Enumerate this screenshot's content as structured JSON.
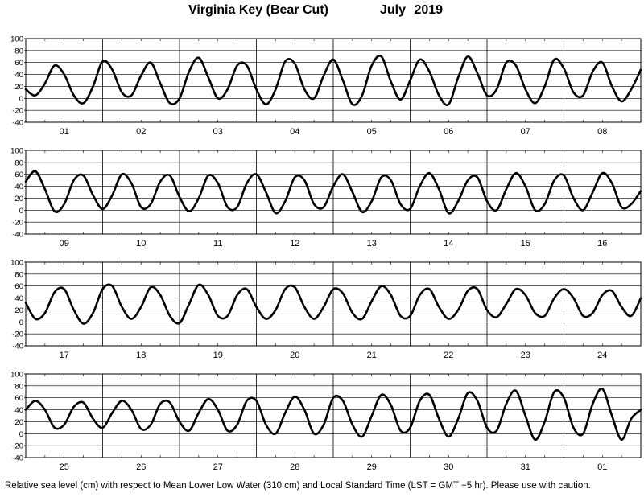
{
  "title": {
    "location": "Virginia Key (Bear Cut)",
    "period": "July   2019"
  },
  "footer": "Relative sea level (cm) with respect to Mean Lower Low Water (310 cm) and Local Standard Time (LST = GMT −5 hr). Please use with caution.",
  "colors": {
    "line": "#000000",
    "grid": "#000000",
    "background": "#ffffff"
  },
  "chart_data": {
    "type": "line",
    "title": "Virginia Key (Bear Cut)    July   2019",
    "xlabel": "",
    "ylabel": "",
    "ylim": [
      -40,
      100
    ],
    "yticks": [
      -40,
      -20,
      0,
      20,
      40,
      60,
      80,
      100
    ],
    "grid": true,
    "panels": [
      {
        "days": [
          "01",
          "02",
          "03",
          "04",
          "05",
          "06",
          "07",
          "08"
        ],
        "x_hours": [
          0,
          3,
          6,
          9,
          12,
          15,
          18,
          21,
          24,
          27,
          30,
          33,
          36,
          39,
          42,
          45,
          48,
          51,
          54,
          57,
          60,
          63,
          66,
          69,
          72,
          75,
          78,
          81,
          84,
          87,
          90,
          93,
          96,
          99,
          102,
          105,
          108,
          111,
          114,
          117,
          120,
          123,
          126,
          129,
          132,
          135,
          138,
          141,
          144,
          147,
          150,
          153,
          156,
          159,
          162,
          165,
          168,
          171,
          174,
          177,
          180,
          183,
          186,
          189,
          192
        ],
        "values": [
          15,
          5,
          25,
          55,
          40,
          5,
          -8,
          20,
          62,
          48,
          10,
          5,
          38,
          60,
          25,
          -8,
          0,
          45,
          68,
          35,
          0,
          15,
          55,
          55,
          15,
          -10,
          15,
          62,
          58,
          15,
          0,
          38,
          65,
          30,
          -10,
          5,
          55,
          70,
          28,
          -2,
          30,
          65,
          45,
          5,
          -10,
          35,
          70,
          42,
          5,
          15,
          60,
          55,
          15,
          -8,
          20,
          65,
          50,
          10,
          5,
          45,
          60,
          20,
          -5,
          15,
          48
        ]
      },
      {
        "days": [
          "09",
          "10",
          "11",
          "12",
          "13",
          "14",
          "15",
          "16"
        ],
        "x_hours": [
          0,
          3,
          6,
          9,
          12,
          15,
          18,
          21,
          24,
          27,
          30,
          33,
          36,
          39,
          42,
          45,
          48,
          51,
          54,
          57,
          60,
          63,
          66,
          69,
          72,
          75,
          78,
          81,
          84,
          87,
          90,
          93,
          96,
          99,
          102,
          105,
          108,
          111,
          114,
          117,
          120,
          123,
          126,
          129,
          132,
          135,
          138,
          141,
          144,
          147,
          150,
          153,
          156,
          159,
          162,
          165,
          168,
          171,
          174,
          177,
          180,
          183,
          186,
          189,
          192
        ],
        "values": [
          48,
          65,
          35,
          -2,
          10,
          50,
          58,
          25,
          2,
          25,
          60,
          45,
          5,
          10,
          48,
          58,
          22,
          -2,
          20,
          58,
          45,
          5,
          5,
          45,
          60,
          30,
          -5,
          15,
          55,
          50,
          10,
          5,
          40,
          60,
          30,
          -3,
          15,
          55,
          50,
          10,
          2,
          40,
          62,
          35,
          -5,
          15,
          50,
          55,
          15,
          0,
          35,
          62,
          40,
          0,
          10,
          50,
          58,
          20,
          0,
          30,
          62,
          45,
          5,
          10,
          32
        ]
      },
      {
        "days": [
          "17",
          "18",
          "19",
          "20",
          "21",
          "22",
          "23",
          "24"
        ],
        "x_hours": [
          0,
          3,
          6,
          9,
          12,
          15,
          18,
          21,
          24,
          27,
          30,
          33,
          36,
          39,
          42,
          45,
          48,
          51,
          54,
          57,
          60,
          63,
          66,
          69,
          72,
          75,
          78,
          81,
          84,
          87,
          90,
          93,
          96,
          99,
          102,
          105,
          108,
          111,
          114,
          117,
          120,
          123,
          126,
          129,
          132,
          135,
          138,
          141,
          144,
          147,
          150,
          153,
          156,
          159,
          162,
          165,
          168,
          171,
          174,
          177,
          180,
          183,
          186,
          189,
          192
        ],
        "values": [
          32,
          5,
          15,
          50,
          55,
          20,
          -3,
          15,
          55,
          60,
          25,
          5,
          25,
          58,
          45,
          10,
          -2,
          30,
          62,
          45,
          10,
          10,
          45,
          55,
          25,
          5,
          20,
          55,
          58,
          25,
          5,
          25,
          55,
          48,
          15,
          5,
          35,
          60,
          45,
          10,
          10,
          45,
          55,
          25,
          5,
          20,
          52,
          55,
          20,
          8,
          30,
          55,
          45,
          15,
          10,
          40,
          55,
          40,
          10,
          15,
          45,
          52,
          25,
          10,
          40
        ]
      },
      {
        "days": [
          "25",
          "26",
          "27",
          "28",
          "29",
          "30",
          "31",
          "01"
        ],
        "x_hours": [
          0,
          3,
          6,
          9,
          12,
          15,
          18,
          21,
          24,
          27,
          30,
          33,
          36,
          39,
          42,
          45,
          48,
          51,
          54,
          57,
          60,
          63,
          66,
          69,
          72,
          75,
          78,
          81,
          84,
          87,
          90,
          93,
          96,
          99,
          102,
          105,
          108,
          111,
          114,
          117,
          120,
          123,
          126,
          129,
          132,
          135,
          138,
          141,
          144,
          147,
          150,
          153,
          156,
          159,
          162,
          165,
          168,
          171,
          174,
          177,
          180,
          183,
          186,
          189,
          192
        ],
        "values": [
          40,
          55,
          40,
          10,
          15,
          45,
          52,
          25,
          10,
          35,
          55,
          40,
          8,
          15,
          50,
          52,
          20,
          5,
          35,
          58,
          40,
          5,
          15,
          55,
          55,
          15,
          0,
          35,
          62,
          40,
          0,
          15,
          60,
          55,
          15,
          -5,
          30,
          65,
          48,
          5,
          10,
          55,
          65,
          25,
          -5,
          25,
          68,
          55,
          10,
          5,
          50,
          72,
          30,
          -10,
          20,
          70,
          60,
          10,
          0,
          50,
          75,
          30,
          -10,
          25,
          40
        ]
      }
    ]
  }
}
